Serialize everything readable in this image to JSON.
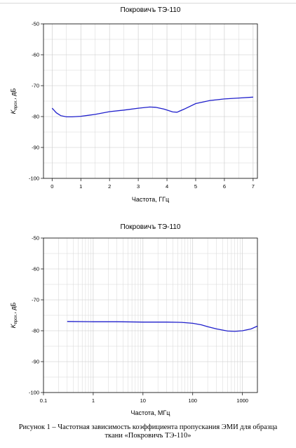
{
  "chart_data": [
    {
      "type": "line",
      "title": "Покровичъ ТЭ-110",
      "xlabel": "Частота, ГГц",
      "ylabel_main": "K",
      "ylabel_sub": "прох.",
      "ylabel_unit": ", дБ",
      "xlim": [
        -0.3,
        7.15
      ],
      "ylim": [
        -100,
        -50
      ],
      "xscale": "linear",
      "xticks": [
        0,
        1,
        2,
        3,
        4,
        5,
        6,
        7
      ],
      "yticks": [
        -50,
        -60,
        -70,
        -80,
        -90,
        -100
      ],
      "grid": true,
      "series": [
        {
          "color": "#1f1fcc",
          "x": [
            0,
            0.15,
            0.3,
            0.5,
            0.7,
            1.0,
            1.5,
            2.0,
            2.5,
            3.0,
            3.4,
            3.6,
            3.9,
            4.2,
            4.35,
            4.6,
            5.0,
            5.5,
            6.0,
            6.5,
            7.0
          ],
          "y": [
            -77.3,
            -78.8,
            -79.7,
            -80.1,
            -80.1,
            -79.9,
            -79.3,
            -78.4,
            -77.9,
            -77.3,
            -76.9,
            -77.0,
            -77.6,
            -78.5,
            -78.6,
            -77.6,
            -75.8,
            -74.8,
            -74.3,
            -74.0,
            -73.7
          ]
        }
      ]
    },
    {
      "type": "line",
      "title": "Покровичъ ТЭ-110",
      "xlabel": "Частота, МГц",
      "ylabel_main": "K",
      "ylabel_sub": "прох.",
      "ylabel_unit": ", дБ",
      "xlim": [
        0.1,
        2000
      ],
      "ylim": [
        -100,
        -50
      ],
      "xscale": "log",
      "xticks": [
        0.1,
        1,
        10,
        100,
        1000
      ],
      "yticks": [
        -50,
        -60,
        -70,
        -80,
        -90,
        -100
      ],
      "grid": true,
      "series": [
        {
          "color": "#1f1fcc",
          "x": [
            0.3,
            1,
            3,
            10,
            30,
            60,
            100,
            150,
            200,
            300,
            500,
            700,
            1000,
            1500,
            2000
          ],
          "y": [
            -77.0,
            -77.1,
            -77.1,
            -77.2,
            -77.2,
            -77.3,
            -77.6,
            -78.1,
            -78.7,
            -79.4,
            -80.1,
            -80.2,
            -80.0,
            -79.4,
            -78.5
          ]
        }
      ]
    }
  ],
  "caption": {
    "line1": "Рисунок 1 – Частотная зависимость коэффициента пропускания ЭМИ для образца",
    "line2": "ткани «Покровичъ ТЭ-110»"
  }
}
